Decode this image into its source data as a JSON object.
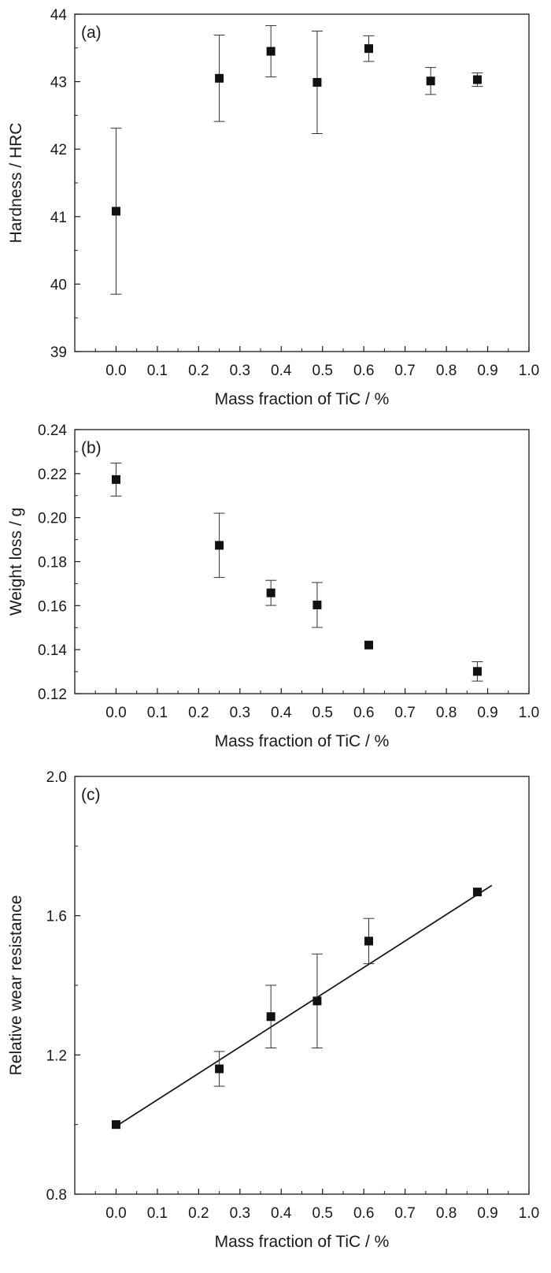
{
  "chart_data": [
    {
      "type": "scatter",
      "panel_label": "(a)",
      "xlabel": "Mass fraction of TiC / %",
      "ylabel": "Hardness / HRC",
      "xlim": [
        -0.1,
        1.0
      ],
      "ylim": [
        39,
        44
      ],
      "xticks": [
        "0.0",
        "0.1",
        "0.2",
        "0.3",
        "0.4",
        "0.5",
        "0.6",
        "0.7",
        "0.8",
        "0.9",
        "1.0"
      ],
      "yticks": [
        "39",
        "40",
        "41",
        "42",
        "43",
        "44"
      ],
      "x": [
        0.0,
        0.25,
        0.375,
        0.487,
        0.612,
        0.762,
        0.875
      ],
      "y": [
        41.08,
        43.05,
        43.45,
        42.99,
        43.49,
        43.01,
        43.03
      ],
      "yerr": [
        1.23,
        0.64,
        0.38,
        0.76,
        0.19,
        0.2,
        0.1
      ]
    },
    {
      "type": "scatter",
      "panel_label": "(b)",
      "xlabel": "Mass fraction of TiC / %",
      "ylabel": "Weight loss / g",
      "xlim": [
        -0.1,
        1.0
      ],
      "ylim": [
        0.12,
        0.24
      ],
      "xticks": [
        "0.0",
        "0.1",
        "0.2",
        "0.3",
        "0.4",
        "0.5",
        "0.6",
        "0.7",
        "0.8",
        "0.9",
        "1.0"
      ],
      "yticks": [
        "0.12",
        "0.14",
        "0.16",
        "0.18",
        "0.20",
        "0.22",
        "0.24"
      ],
      "x": [
        0.0,
        0.25,
        0.375,
        0.487,
        0.612,
        0.875
      ],
      "y": [
        0.2173,
        0.1874,
        0.1658,
        0.1603,
        0.1421,
        0.1301
      ],
      "yerr": [
        0.0075,
        0.0146,
        0.0057,
        0.0102,
        0.0,
        0.0044
      ]
    },
    {
      "type": "scatter",
      "panel_label": "(c)",
      "xlabel": "Mass fraction of TiC / %",
      "ylabel": "Relative wear resistance",
      "xlim": [
        -0.1,
        1.0
      ],
      "ylim": [
        0.8,
        2.0
      ],
      "xticks": [
        "0.0",
        "0.1",
        "0.2",
        "0.3",
        "0.4",
        "0.5",
        "0.6",
        "0.7",
        "0.8",
        "0.9",
        "1.0"
      ],
      "yticks": [
        "0.8",
        "1.2",
        "1.6",
        "2.0"
      ],
      "x": [
        0.0,
        0.25,
        0.375,
        0.487,
        0.612,
        0.875
      ],
      "y": [
        1.0,
        1.16,
        1.31,
        1.355,
        1.527,
        1.668
      ],
      "yerr": [
        0.0,
        0.05,
        0.09,
        0.135,
        0.065,
        0.0
      ],
      "fit_line": {
        "x": [
          0.0,
          0.91
        ],
        "y": [
          0.995,
          1.687
        ]
      }
    }
  ]
}
